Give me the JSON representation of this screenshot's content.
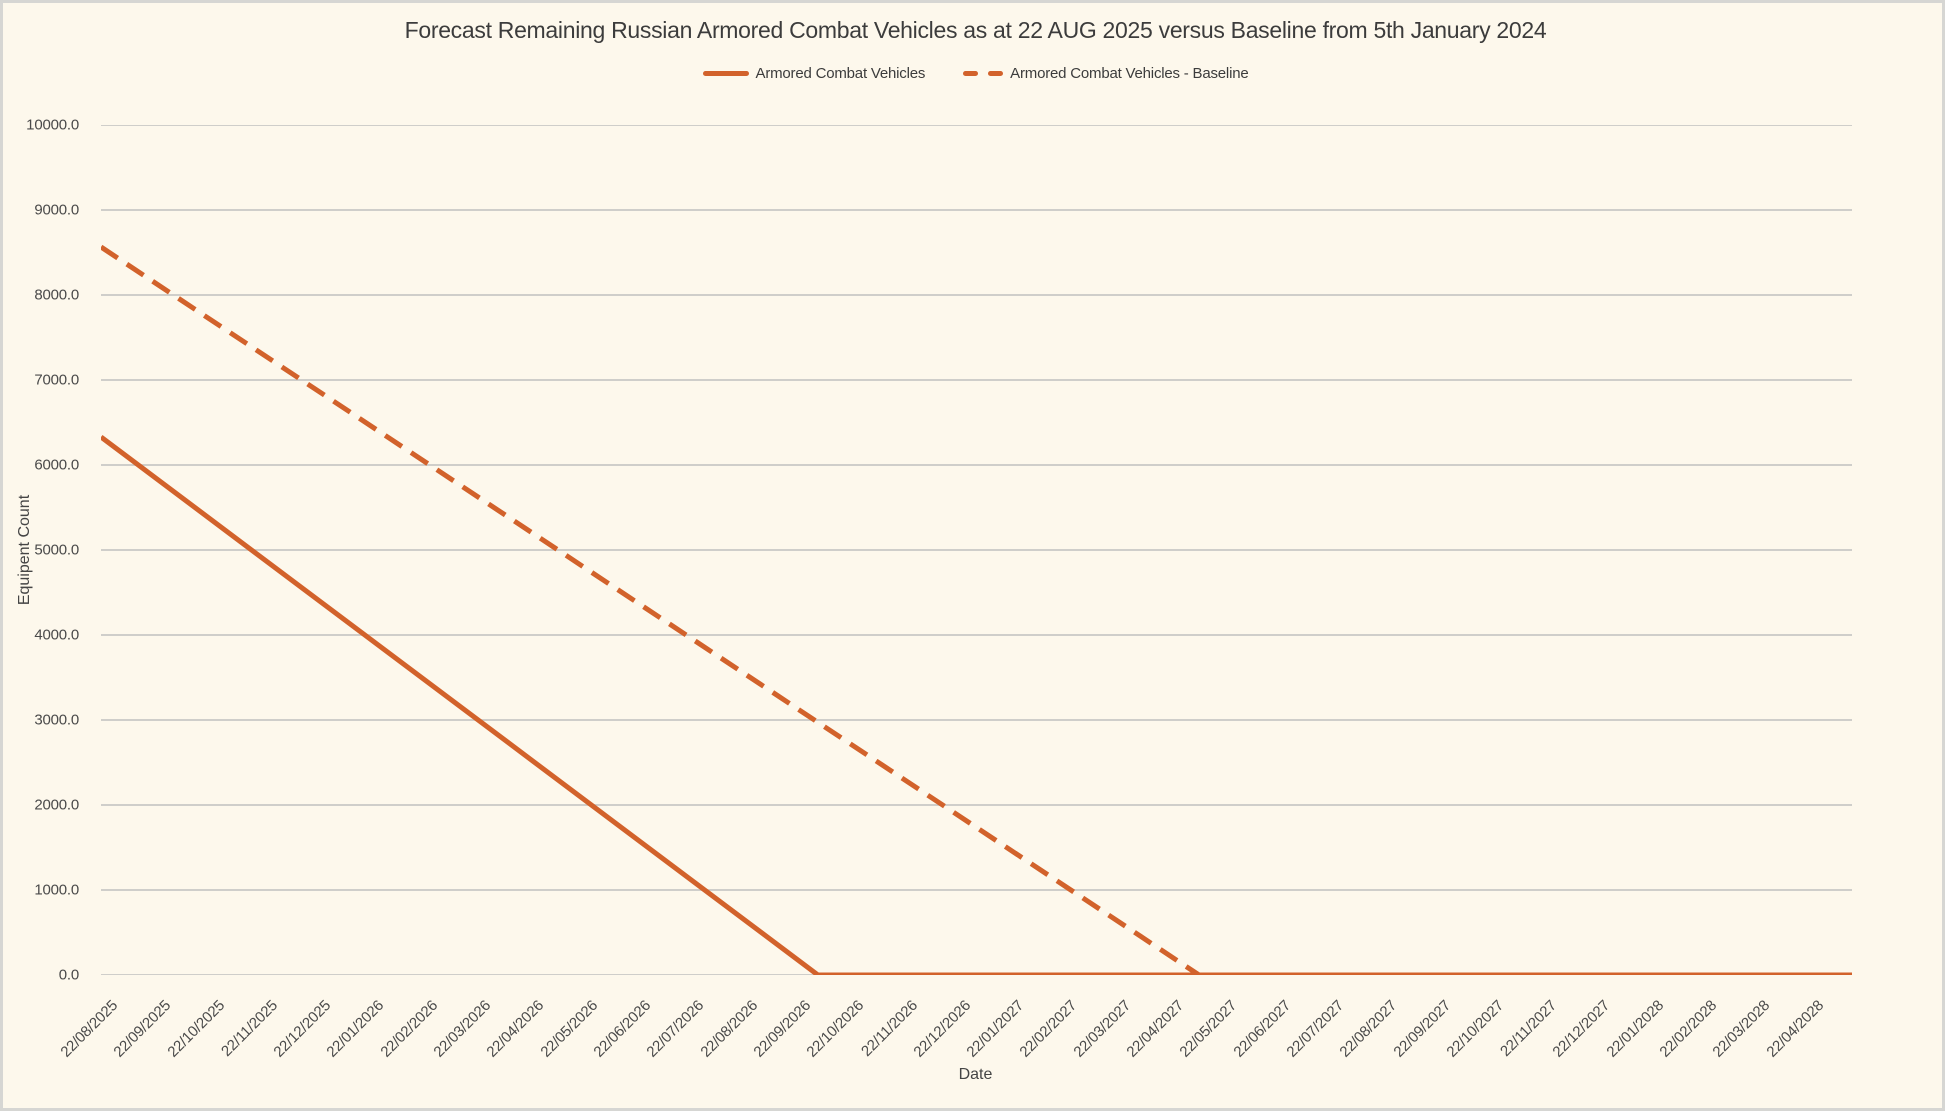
{
  "page": {
    "background_color": "#fdf8ec",
    "border_color": "#d6d6d3"
  },
  "chart_data": {
    "type": "line",
    "title": "Forecast Remaining Russian Armored Combat Vehicles as at 22 AUG 2025 versus Baseline from 5th January 2024",
    "xlabel": "Date",
    "ylabel": "Equipent Count",
    "ylim": [
      0,
      10000
    ],
    "y_tick_labels": [
      "0.0",
      "1000.0",
      "2000.0",
      "3000.0",
      "4000.0",
      "5000.0",
      "6000.0",
      "7000.0",
      "8000.0",
      "9000.0",
      "10000.0"
    ],
    "x_tick_labels": [
      "22/08/2025",
      "22/09/2025",
      "22/10/2025",
      "22/11/2025",
      "22/12/2025",
      "22/01/2026",
      "22/02/2026",
      "22/03/2026",
      "22/04/2026",
      "22/05/2026",
      "22/06/2026",
      "22/07/2026",
      "22/08/2026",
      "22/09/2026",
      "22/10/2026",
      "22/11/2026",
      "22/12/2026",
      "22/01/2027",
      "22/02/2027",
      "22/03/2027",
      "22/04/2027",
      "22/05/2027",
      "22/06/2027",
      "22/07/2027",
      "22/08/2027",
      "22/09/2027",
      "22/10/2027",
      "22/11/2027",
      "22/12/2027",
      "22/01/2028",
      "22/02/2028",
      "22/03/2028",
      "22/04/2028"
    ],
    "x_range_months": [
      0,
      32.85
    ],
    "grid": "horizontal",
    "grid_color": "#c8c8c5",
    "accent_color": "#d2622b",
    "legend_position": "top-center",
    "series": [
      {
        "name": "Armored Combat Vehicles",
        "style": "solid",
        "color": "#d2622b",
        "points_months_value": [
          [
            0,
            6330
          ],
          [
            13.45,
            0
          ],
          [
            32.85,
            0
          ]
        ]
      },
      {
        "name": "Armored Combat Vehicles - Baseline",
        "style": "dashed",
        "color": "#d2622b",
        "points_months_value": [
          [
            0,
            8565
          ],
          [
            20.6,
            0
          ],
          [
            32.85,
            0
          ]
        ]
      }
    ]
  }
}
